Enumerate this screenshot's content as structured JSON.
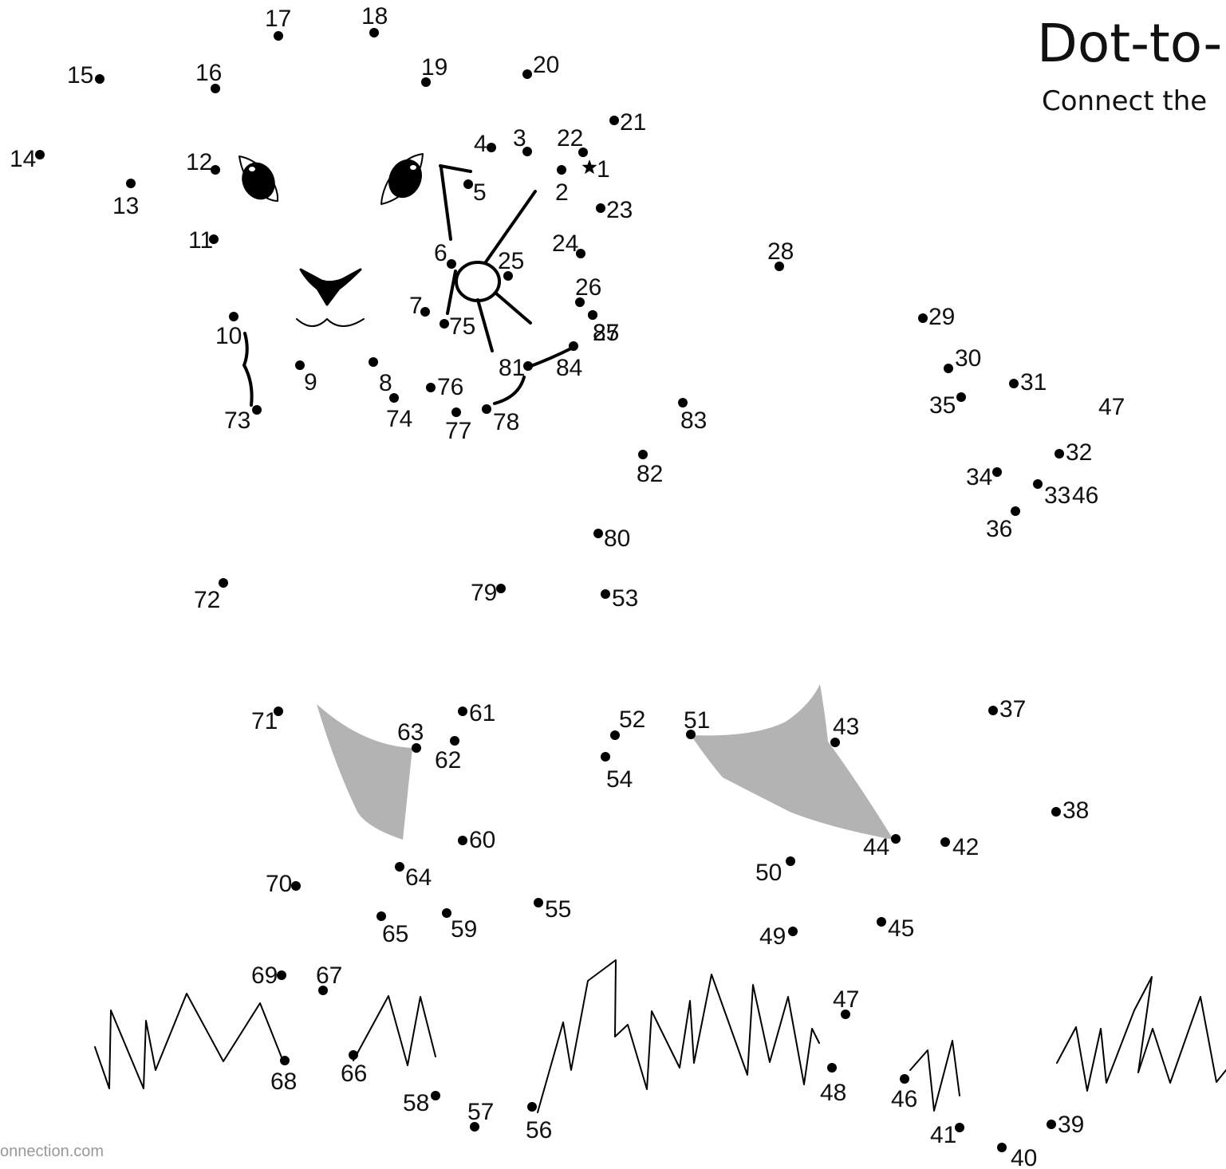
{
  "header": {
    "title": "Dot-to-",
    "subtitle": "Connect the"
  },
  "footer": {
    "text": "onnection.com"
  },
  "start_marker": "star-icon",
  "dots": [
    {
      "label": "1"
    },
    {
      "label": "2"
    },
    {
      "label": "3"
    },
    {
      "label": "4"
    },
    {
      "label": "5"
    },
    {
      "label": "6"
    },
    {
      "label": "7"
    },
    {
      "label": "8"
    },
    {
      "label": "9"
    },
    {
      "label": "10"
    },
    {
      "label": "11"
    },
    {
      "label": "12"
    },
    {
      "label": "13"
    },
    {
      "label": "14"
    },
    {
      "label": "15"
    },
    {
      "label": "16"
    },
    {
      "label": "17"
    },
    {
      "label": "18"
    },
    {
      "label": "19"
    },
    {
      "label": "20"
    },
    {
      "label": "21"
    },
    {
      "label": "22"
    },
    {
      "label": "23"
    },
    {
      "label": "24"
    },
    {
      "label": "25"
    },
    {
      "label": "26"
    },
    {
      "label": "27"
    },
    {
      "label": "28"
    },
    {
      "label": "29"
    },
    {
      "label": "30"
    },
    {
      "label": "31"
    },
    {
      "label": "32"
    },
    {
      "label": "33"
    },
    {
      "label": "34"
    },
    {
      "label": "35"
    },
    {
      "label": "36"
    },
    {
      "label": "37"
    },
    {
      "label": "38"
    },
    {
      "label": "39"
    },
    {
      "label": "40"
    },
    {
      "label": "41"
    },
    {
      "label": "42"
    },
    {
      "label": "43"
    },
    {
      "label": "44"
    },
    {
      "label": "45"
    },
    {
      "label": "46"
    },
    {
      "label": "47"
    },
    {
      "label": "48"
    },
    {
      "label": "49"
    },
    {
      "label": "50"
    },
    {
      "label": "51"
    },
    {
      "label": "52"
    },
    {
      "label": "53"
    },
    {
      "label": "54"
    },
    {
      "label": "55"
    },
    {
      "label": "56"
    },
    {
      "label": "57"
    },
    {
      "label": "58"
    },
    {
      "label": "59"
    },
    {
      "label": "60"
    },
    {
      "label": "61"
    },
    {
      "label": "62"
    },
    {
      "label": "63"
    },
    {
      "label": "64"
    },
    {
      "label": "65"
    },
    {
      "label": "66"
    },
    {
      "label": "67"
    },
    {
      "label": "68"
    },
    {
      "label": "69"
    },
    {
      "label": "70"
    },
    {
      "label": "71"
    },
    {
      "label": "72"
    },
    {
      "label": "73"
    },
    {
      "label": "74"
    },
    {
      "label": "75"
    },
    {
      "label": "76"
    },
    {
      "label": "77"
    },
    {
      "label": "78"
    },
    {
      "label": "79"
    },
    {
      "label": "80"
    },
    {
      "label": "81"
    },
    {
      "label": "82"
    },
    {
      "label": "83"
    },
    {
      "label": "84"
    },
    {
      "label": "85"
    }
  ],
  "edge_labels": [
    {
      "label": "46"
    },
    {
      "label": "47"
    }
  ],
  "colors": {
    "ink": "#000000",
    "fill_gray": "#b3b3b3",
    "footer": "#999999"
  }
}
